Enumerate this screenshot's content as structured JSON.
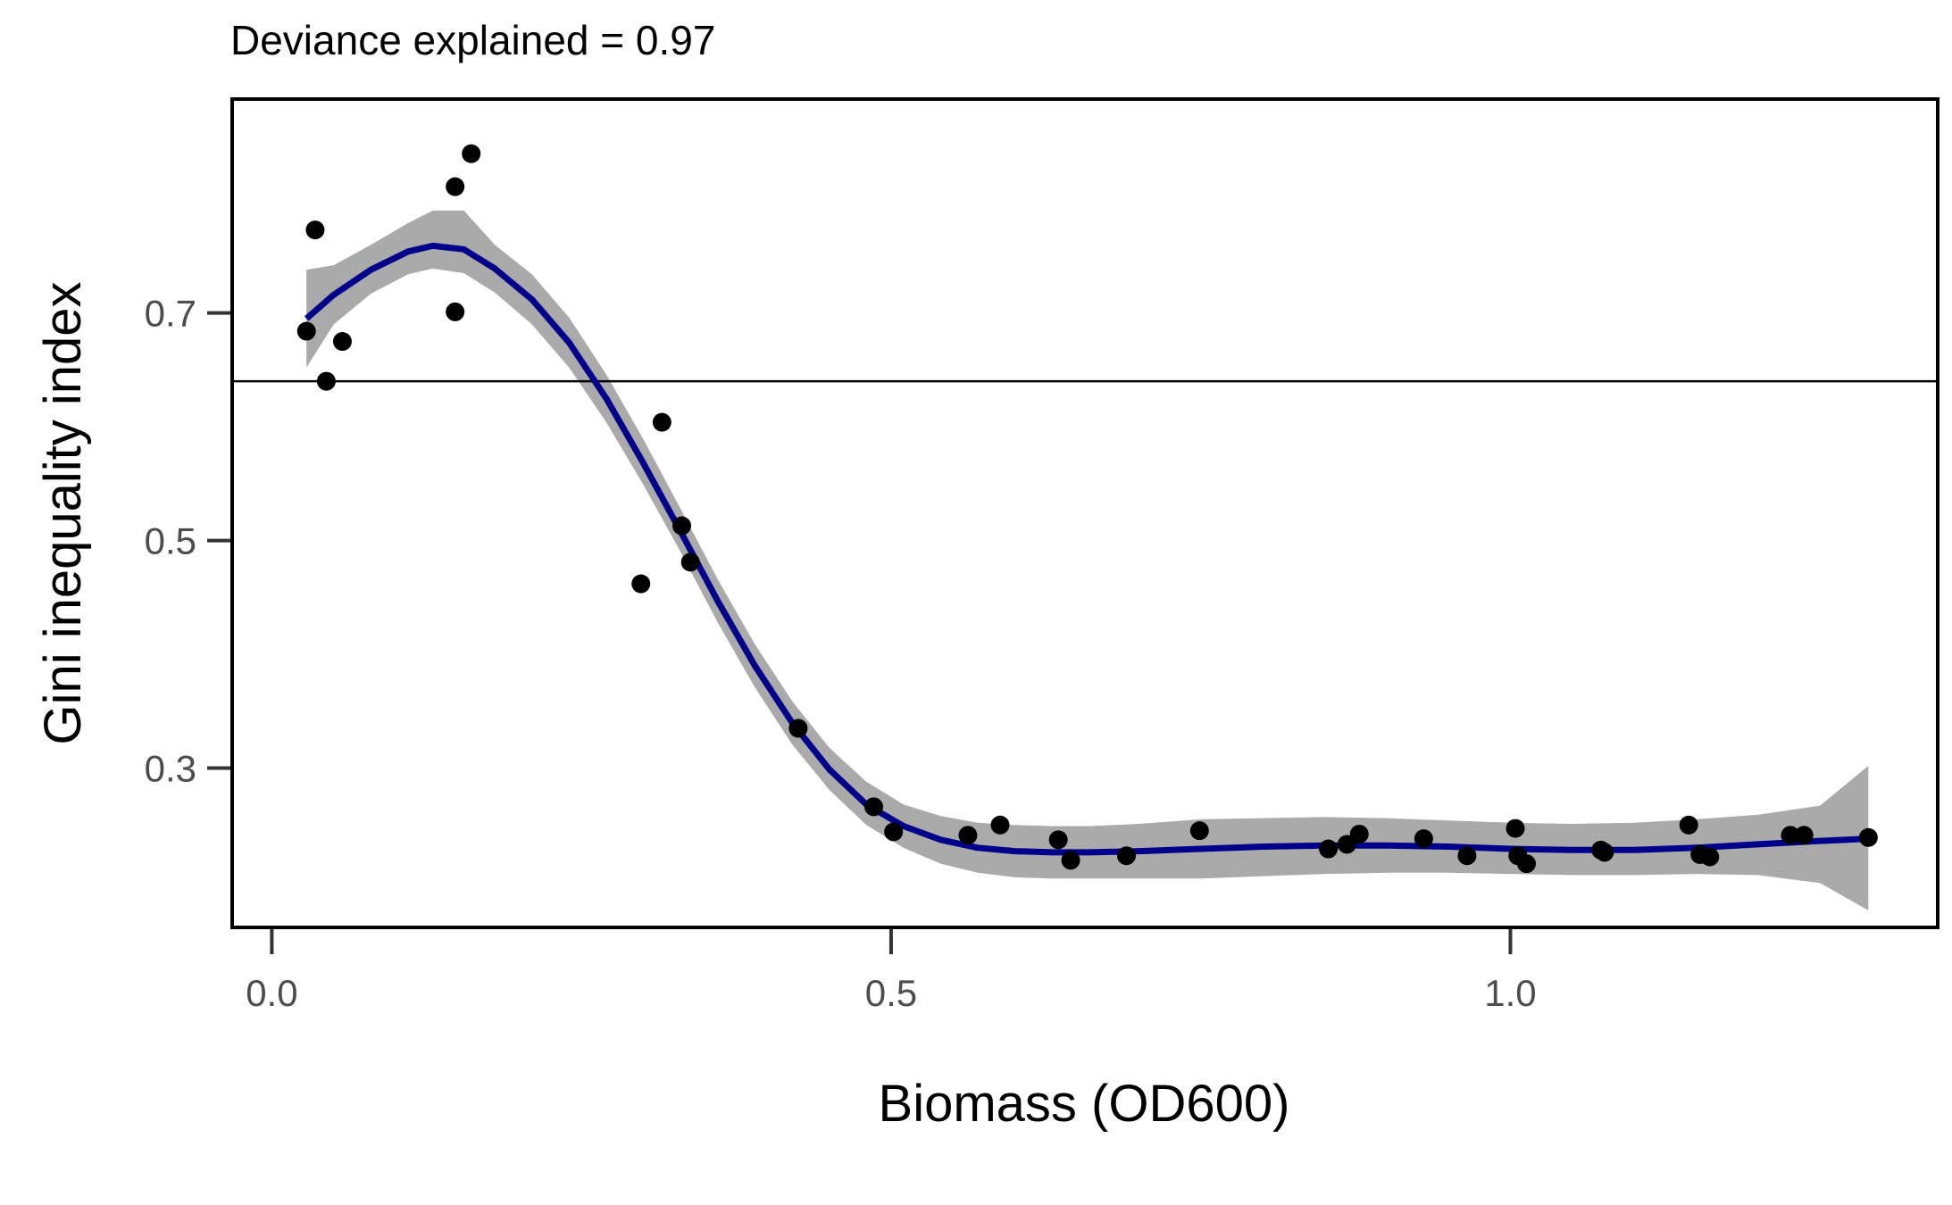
{
  "chart_data": {
    "type": "scatter",
    "title": "Deviance explained = 0.97",
    "xlabel": "Biomass (OD600)",
    "ylabel": "Gini inequality index",
    "xlim": [
      -0.032,
      1.345
    ],
    "ylim": [
      0.16,
      0.888
    ],
    "x_ticks": [
      0.0,
      0.5,
      1.0
    ],
    "x_tick_labels": [
      "0.0",
      "0.5",
      "1.0"
    ],
    "y_ticks": [
      0.3,
      0.5,
      0.7
    ],
    "y_tick_labels": [
      "0.3",
      "0.5",
      "0.7"
    ],
    "grid": false,
    "legend": "none",
    "reference_line_y": 0.64,
    "colors": {
      "points": "#000000",
      "smooth_line": "#00008b",
      "confidence_band": "#aaaaaa",
      "reference_line": "#000000",
      "panel_border": "#000000"
    },
    "points": {
      "x": [
        0.028,
        0.035,
        0.044,
        0.057,
        0.148,
        0.148,
        0.161,
        0.298,
        0.315,
        0.331,
        0.338,
        0.425,
        0.486,
        0.502,
        0.562,
        0.588,
        0.635,
        0.645,
        0.69,
        0.749,
        0.853,
        0.868,
        0.878,
        0.93,
        0.965,
        1.004,
        1.006,
        1.013,
        1.073,
        1.076,
        1.144,
        1.153,
        1.161,
        1.226,
        1.237,
        1.289
      ],
      "y": [
        0.684,
        0.773,
        0.64,
        0.675,
        0.701,
        0.811,
        0.84,
        0.462,
        0.604,
        0.513,
        0.481,
        0.335,
        0.266,
        0.244,
        0.241,
        0.25,
        0.237,
        0.219,
        0.223,
        0.245,
        0.229,
        0.233,
        0.242,
        0.238,
        0.223,
        0.247,
        0.223,
        0.216,
        0.228,
        0.226,
        0.25,
        0.224,
        0.222,
        0.241,
        0.241,
        0.239
      ]
    },
    "smooth": {
      "x": [
        0.028,
        0.05,
        0.08,
        0.11,
        0.13,
        0.155,
        0.18,
        0.21,
        0.24,
        0.27,
        0.3,
        0.33,
        0.36,
        0.39,
        0.42,
        0.45,
        0.48,
        0.51,
        0.54,
        0.57,
        0.6,
        0.63,
        0.66,
        0.7,
        0.75,
        0.8,
        0.85,
        0.9,
        0.95,
        1.0,
        1.05,
        1.1,
        1.15,
        1.2,
        1.25,
        1.289
      ],
      "y": [
        0.695,
        0.716,
        0.738,
        0.754,
        0.759,
        0.756,
        0.739,
        0.712,
        0.674,
        0.625,
        0.568,
        0.508,
        0.447,
        0.39,
        0.34,
        0.299,
        0.268,
        0.249,
        0.237,
        0.23,
        0.227,
        0.226,
        0.226,
        0.227,
        0.229,
        0.231,
        0.232,
        0.232,
        0.231,
        0.229,
        0.228,
        0.228,
        0.23,
        0.233,
        0.236,
        0.238
      ],
      "lower": [
        0.652,
        0.69,
        0.717,
        0.734,
        0.739,
        0.735,
        0.718,
        0.69,
        0.652,
        0.604,
        0.549,
        0.49,
        0.428,
        0.371,
        0.321,
        0.281,
        0.25,
        0.23,
        0.216,
        0.208,
        0.204,
        0.203,
        0.203,
        0.203,
        0.203,
        0.205,
        0.207,
        0.208,
        0.208,
        0.207,
        0.206,
        0.206,
        0.207,
        0.206,
        0.199,
        0.175
      ],
      "upper": [
        0.738,
        0.742,
        0.76,
        0.779,
        0.79,
        0.79,
        0.76,
        0.734,
        0.696,
        0.646,
        0.589,
        0.528,
        0.466,
        0.409,
        0.359,
        0.318,
        0.288,
        0.268,
        0.258,
        0.252,
        0.25,
        0.249,
        0.249,
        0.251,
        0.255,
        0.256,
        0.257,
        0.256,
        0.254,
        0.252,
        0.251,
        0.252,
        0.255,
        0.259,
        0.267,
        0.302
      ]
    }
  }
}
